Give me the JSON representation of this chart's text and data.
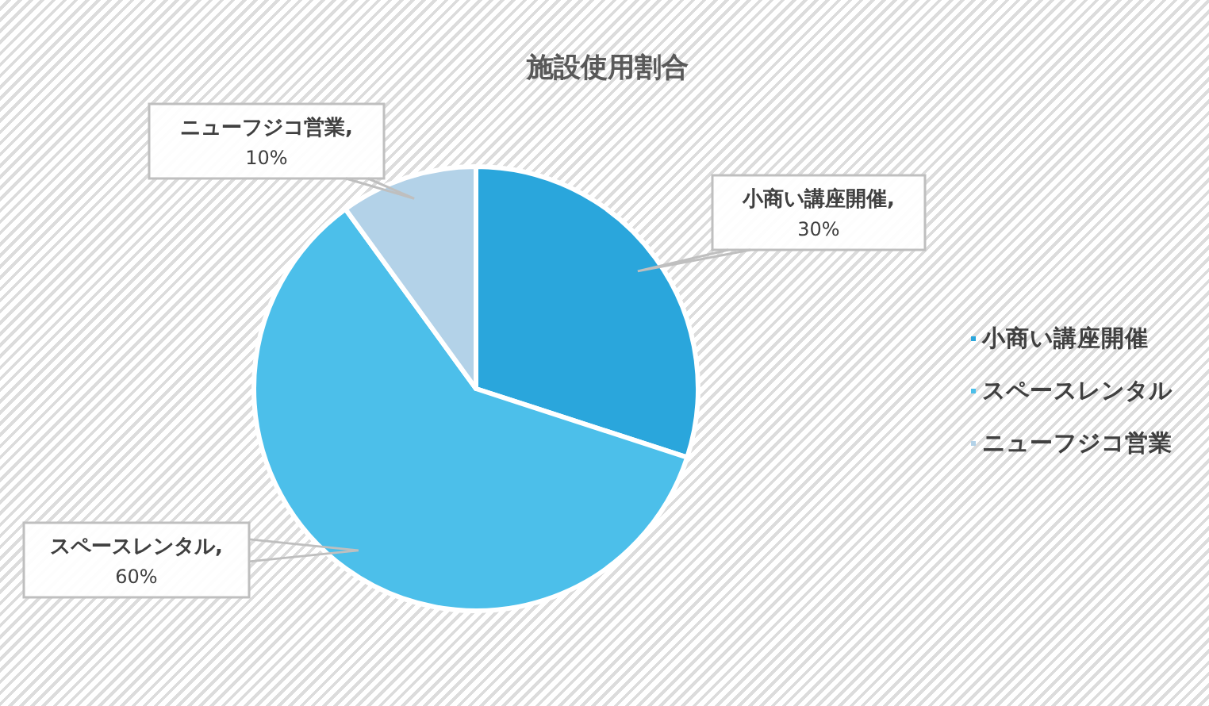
{
  "chart_data": {
    "type": "pie",
    "title": "施設使用割合",
    "categories": [
      "小商い講座開催",
      "スペースレンタル",
      "ニューフジコ営業"
    ],
    "values": [
      30,
      60,
      10
    ],
    "value_labels": [
      "小商い講座開催,\n30%",
      "スペースレンタル,\n60%",
      "ニューフジコ営業,\n10%"
    ],
    "colors": [
      "#2aa6dc",
      "#4cbfea",
      "#b3d2e8"
    ],
    "legend": "right"
  }
}
